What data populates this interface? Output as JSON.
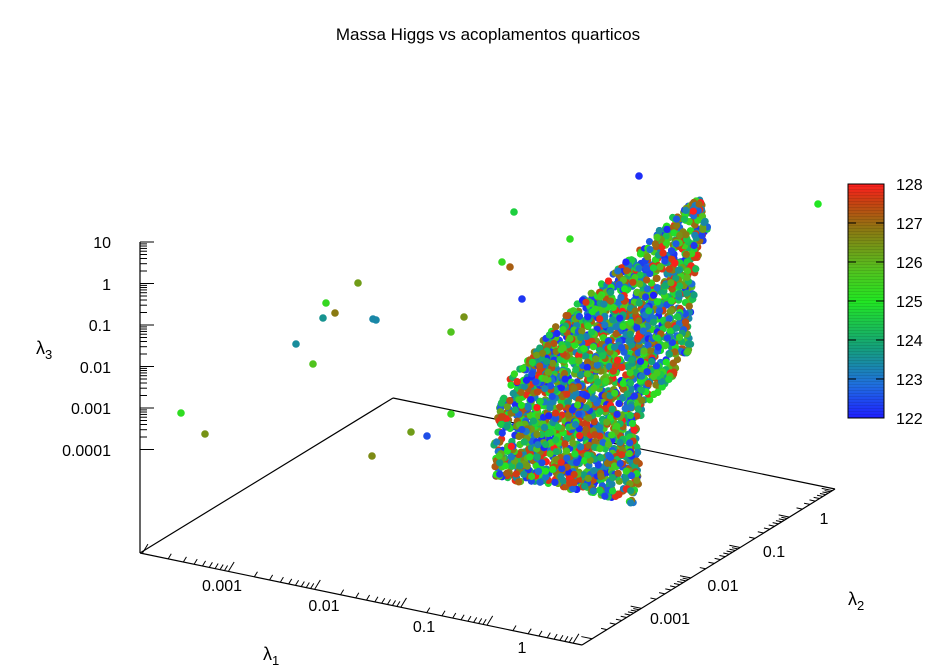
{
  "chart_data": {
    "type": "scatter3d",
    "title": "Massa Higgs vs acoplamentos quarticos",
    "axes": {
      "x": {
        "label": "λ",
        "label_sub": "1",
        "scale": "log",
        "ticks": [
          "0.001",
          "0.01",
          "0.1",
          "1"
        ]
      },
      "y": {
        "label": "λ",
        "label_sub": "2",
        "scale": "log",
        "ticks": [
          "0.001",
          "0.01",
          "0.1",
          "1"
        ]
      },
      "z": {
        "label": "λ",
        "label_sub": "3",
        "scale": "log",
        "ticks": [
          "10",
          "1",
          "0.1",
          "0.01",
          "0.001",
          "0.0001"
        ]
      }
    },
    "colorbar": {
      "ticks": [
        "128",
        "127",
        "126",
        "125",
        "124",
        "123",
        "122"
      ],
      "range": [
        122,
        128
      ],
      "colors": [
        "#1e1eff",
        "#1f7ac8",
        "#12b07a",
        "#22e622",
        "#5cb81e",
        "#8a7a12",
        "#d23a12",
        "#ff1e1e"
      ]
    },
    "cloud": {
      "description_points": 4000,
      "mass_range": [
        122,
        128
      ]
    },
    "outliers": [
      {
        "px": 639,
        "py": 176,
        "m": 122.2
      },
      {
        "px": 818,
        "py": 204,
        "m": 125.0
      },
      {
        "px": 514,
        "py": 212,
        "m": 124.6
      },
      {
        "px": 570,
        "py": 239,
        "m": 125.2
      },
      {
        "px": 502,
        "py": 262,
        "m": 125.3
      },
      {
        "px": 510,
        "py": 267,
        "m": 127.0
      },
      {
        "px": 522,
        "py": 299,
        "m": 122.3
      },
      {
        "px": 358,
        "py": 283,
        "m": 126.2
      },
      {
        "px": 326,
        "py": 303,
        "m": 125.3
      },
      {
        "px": 335,
        "py": 313,
        "m": 126.6
      },
      {
        "px": 323,
        "py": 318,
        "m": 123.6
      },
      {
        "px": 373,
        "py": 319,
        "m": 123.4
      },
      {
        "px": 376,
        "py": 320,
        "m": 123.4
      },
      {
        "px": 464,
        "py": 317,
        "m": 126.3
      },
      {
        "px": 451,
        "py": 332,
        "m": 125.7
      },
      {
        "px": 296,
        "py": 344,
        "m": 123.5
      },
      {
        "px": 313,
        "py": 364,
        "m": 125.7
      },
      {
        "px": 181,
        "py": 413,
        "m": 125.2
      },
      {
        "px": 205,
        "py": 434,
        "m": 126.3
      },
      {
        "px": 411,
        "py": 432,
        "m": 126.2
      },
      {
        "px": 427,
        "py": 436,
        "m": 122.6
      },
      {
        "px": 451,
        "py": 414,
        "m": 125.3
      },
      {
        "px": 372,
        "py": 456,
        "m": 126.4
      }
    ]
  }
}
